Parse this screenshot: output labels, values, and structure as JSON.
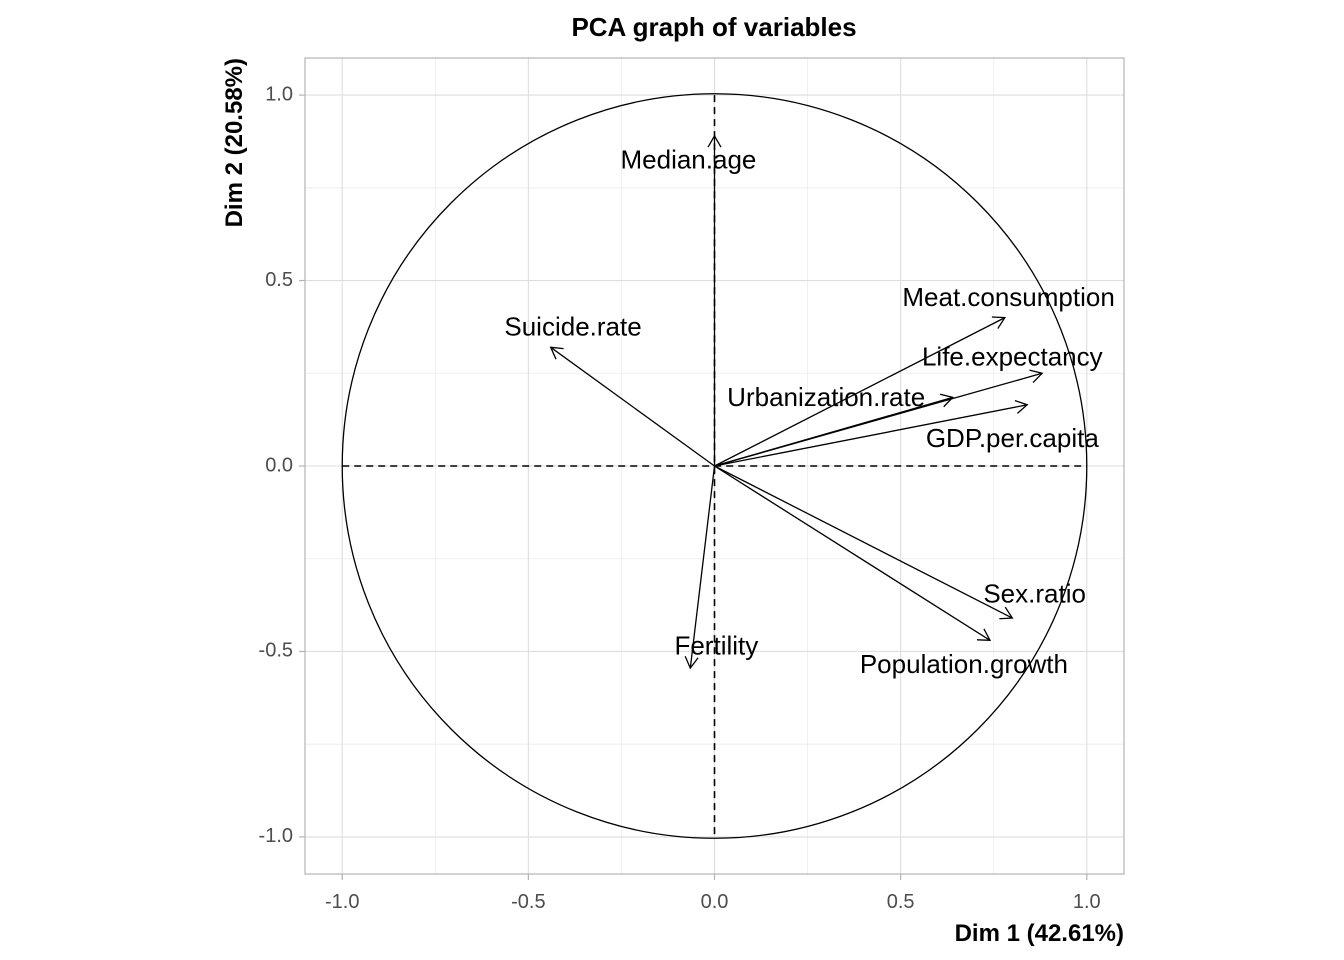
{
  "chart_data": {
    "type": "scatter",
    "title": "PCA graph of variables",
    "xlabel": "Dim 1 (42.61%)",
    "ylabel": "Dim 2 (20.58%)",
    "xlim": [
      -1.1,
      1.1
    ],
    "ylim": [
      -1.1,
      1.1
    ],
    "xticks": [
      {
        "value": -1.0,
        "label": "-1.0"
      },
      {
        "value": -0.5,
        "label": "-0.5"
      },
      {
        "value": 0.0,
        "label": "0.0"
      },
      {
        "value": 0.5,
        "label": "0.5"
      },
      {
        "value": 1.0,
        "label": "1.0"
      }
    ],
    "yticks": [
      {
        "value": -1.0,
        "label": "-1.0"
      },
      {
        "value": -0.5,
        "label": "-0.5"
      },
      {
        "value": 0.0,
        "label": "0.0"
      },
      {
        "value": 0.5,
        "label": "0.5"
      },
      {
        "value": 1.0,
        "label": "1.0"
      }
    ],
    "grid": true,
    "correlation_circle": true,
    "variables": [
      {
        "name": "Median.age",
        "x": 0.0,
        "y": 0.89,
        "label_x": -0.07,
        "label_y": 0.82
      },
      {
        "name": "Suicide.rate",
        "x": -0.44,
        "y": 0.32,
        "label_x": -0.38,
        "label_y": 0.37
      },
      {
        "name": "Meat.consumption",
        "x": 0.78,
        "y": 0.4,
        "label_x": 0.79,
        "label_y": 0.45
      },
      {
        "name": "Life.expectancy",
        "x": 0.88,
        "y": 0.25,
        "label_x": 0.8,
        "label_y": 0.29
      },
      {
        "name": "Urbanization.rate",
        "x": 0.64,
        "y": 0.185,
        "label_x": 0.3,
        "label_y": 0.18
      },
      {
        "name": "GDP.per.capita",
        "x": 0.84,
        "y": 0.165,
        "label_x": 0.8,
        "label_y": 0.07
      },
      {
        "name": "Sex.ratio",
        "x": 0.8,
        "y": -0.41,
        "label_x": 0.86,
        "label_y": -0.35
      },
      {
        "name": "Population.growth",
        "x": 0.74,
        "y": -0.47,
        "label_x": 0.67,
        "label_y": -0.54
      },
      {
        "name": "Fertility",
        "x": -0.065,
        "y": -0.545,
        "label_x": 0.005,
        "label_y": -0.49
      }
    ]
  }
}
